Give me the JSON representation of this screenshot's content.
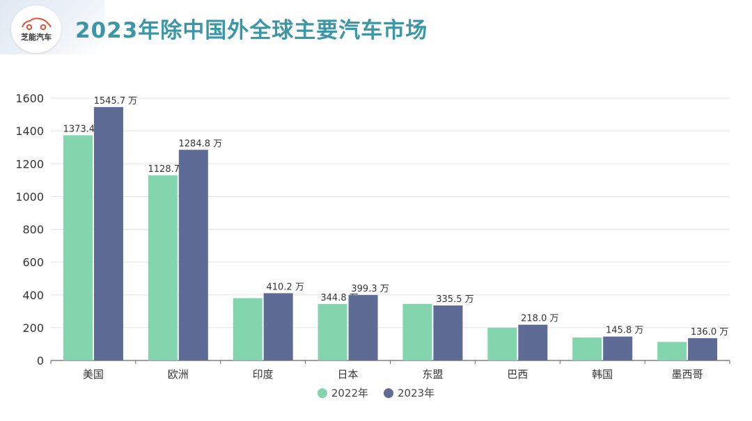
{
  "title": "2023年除中国外全球主要汽车市场",
  "logo": {
    "text": "芝能汽车",
    "icon": "car-logo-icon"
  },
  "colors": {
    "series2022": "#83d5ae",
    "series2023": "#5e6b94",
    "title": "#3b96a6",
    "logo_red": "#e0533a"
  },
  "chart_data": {
    "type": "bar",
    "categories": [
      "美国",
      "欧洲",
      "印度",
      "日本",
      "东盟",
      "巴西",
      "韩国",
      "墨西哥"
    ],
    "series": [
      {
        "name": "2022年",
        "values": [
          1373.4,
          1128.7,
          380,
          344.8,
          345,
          200,
          140,
          113
        ],
        "labels": [
          "1373.4 万",
          "1128.7 万",
          "",
          "344.8 万",
          "",
          "",
          "",
          ""
        ]
      },
      {
        "name": "2023年",
        "values": [
          1545.7,
          1284.8,
          410.2,
          399.3,
          335.5,
          218.0,
          145.8,
          136.0
        ],
        "labels": [
          "1545.7 万",
          "1284.8 万",
          "410.2 万",
          "399.3 万",
          "335.5 万",
          "218.0 万",
          "145.8 万",
          "136.0 万"
        ]
      }
    ],
    "yticks": [
      "0",
      "200",
      "400",
      "600",
      "800",
      "1000",
      "1200",
      "1400",
      "1600"
    ],
    "ylim": [
      0,
      1600
    ],
    "grid": true,
    "legend_position": "bottom"
  }
}
